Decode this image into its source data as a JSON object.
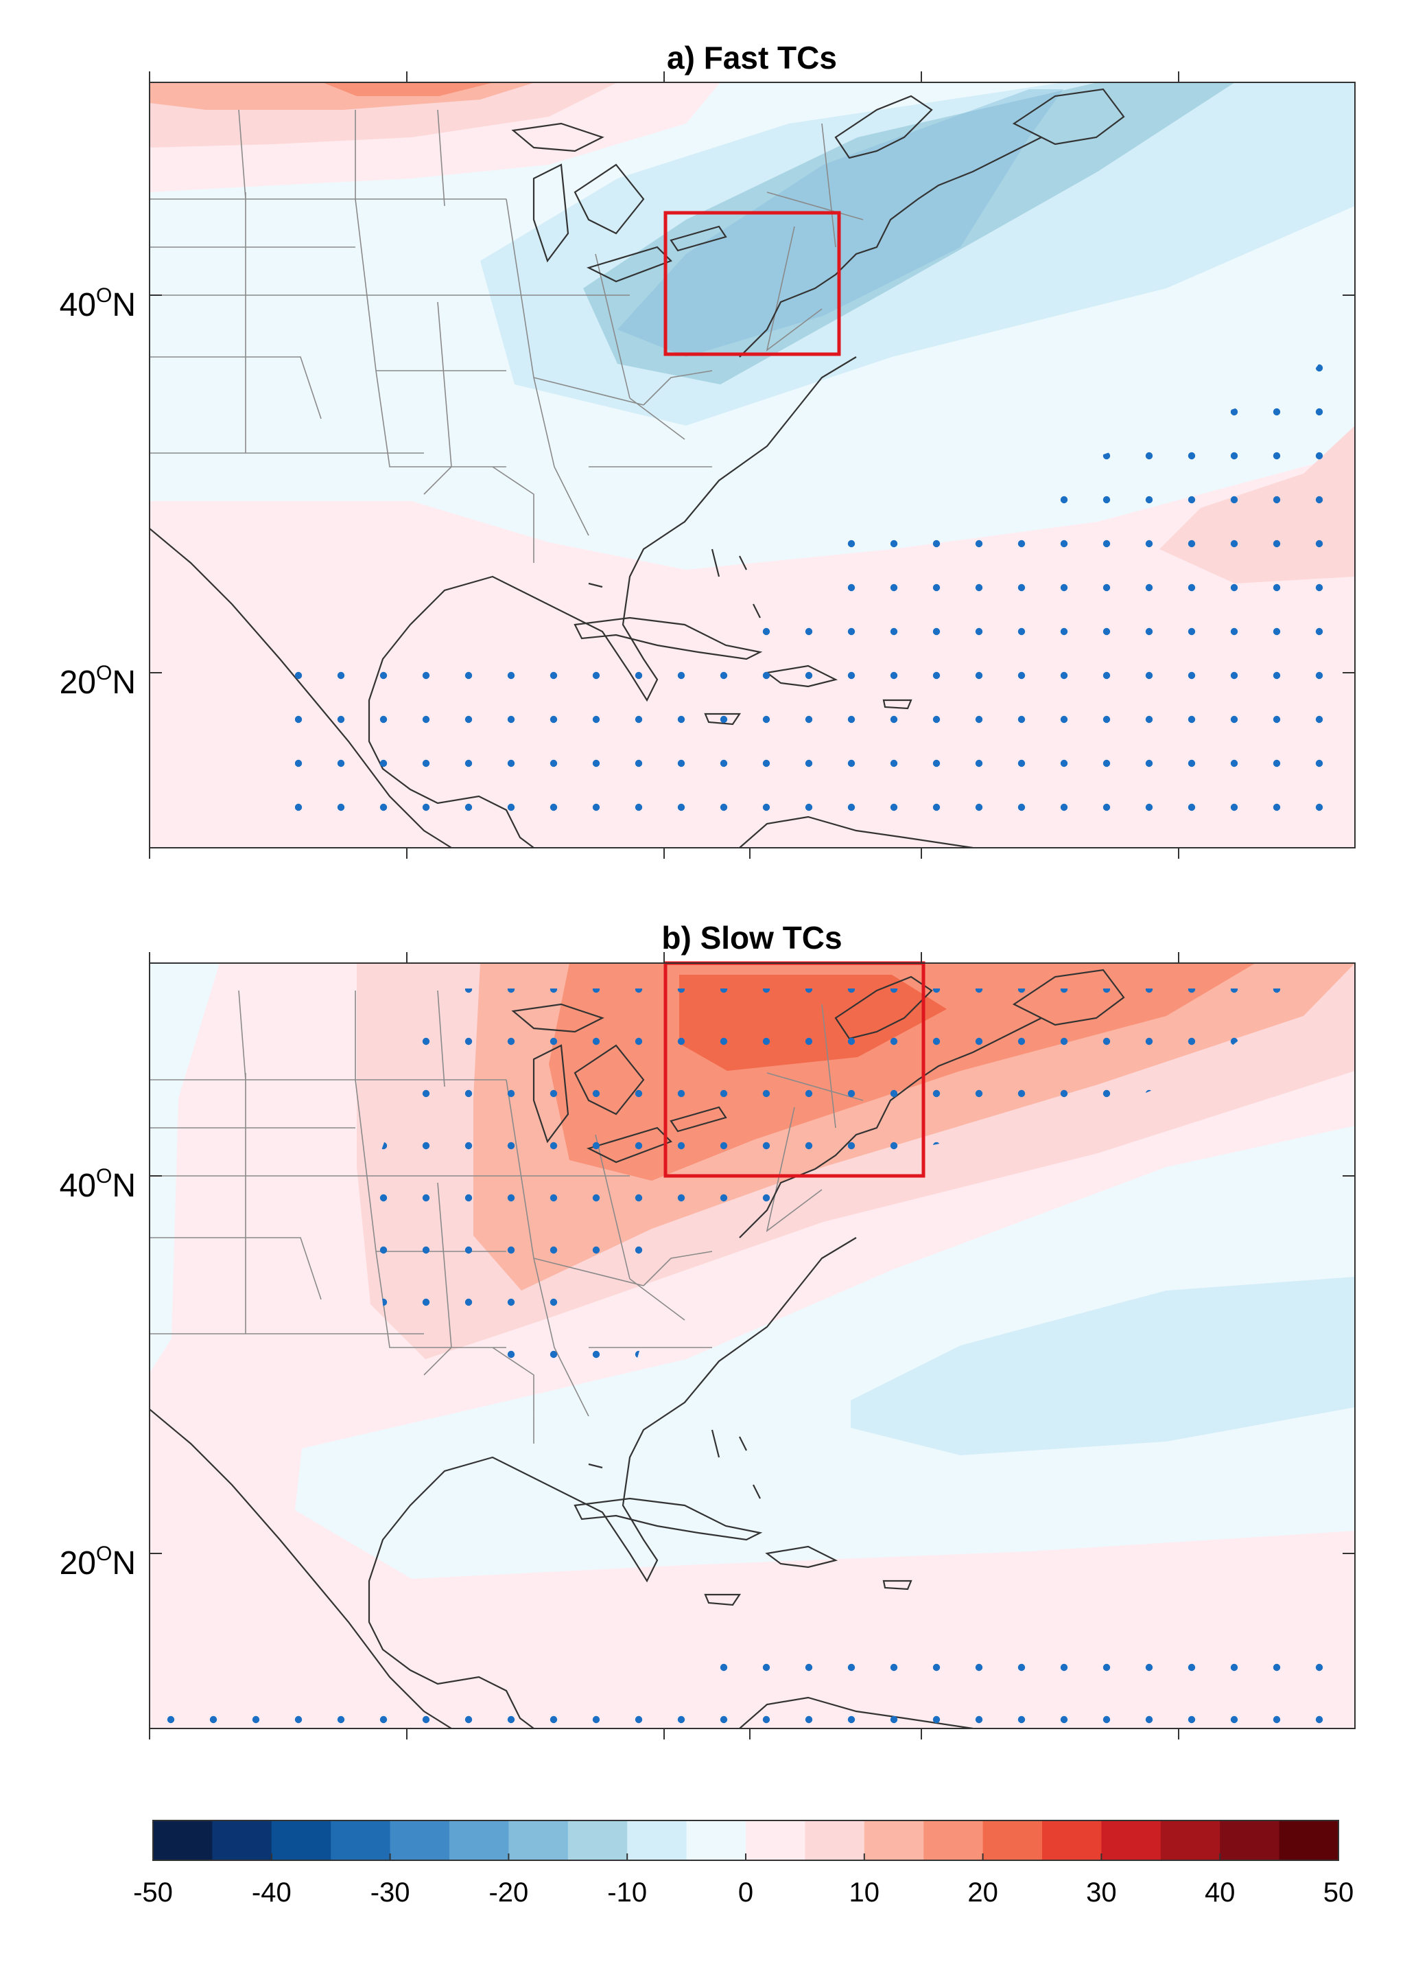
{
  "panels": [
    {
      "id": "a",
      "title": "a) Fast TCs",
      "yticks": [
        {
          "deg": "40",
          "hemi": "N"
        },
        {
          "deg": "20",
          "hemi": "N"
        }
      ]
    },
    {
      "id": "b",
      "title": "b) Slow TCs",
      "yticks": [
        {
          "deg": "40",
          "hemi": "N"
        },
        {
          "deg": "20",
          "hemi": "N"
        }
      ]
    }
  ],
  "colorbar": {
    "ticks": [
      "-50",
      "-40",
      "-30",
      "-20",
      "-10",
      "0",
      "10",
      "20",
      "30",
      "40",
      "50"
    ],
    "colors": [
      "#08204a",
      "#0b3572",
      "#0b4f95",
      "#1f6cb3",
      "#3f8ac6",
      "#5fa3d2",
      "#84bcdc",
      "#a9d4e4",
      "#d3eef8",
      "#eef9fd",
      "#ffecf0",
      "#fdd8d8",
      "#fbb6a6",
      "#f89379",
      "#f26a4c",
      "#e84030",
      "#cc1f24",
      "#a4141b",
      "#7e0c14",
      "#5c0308"
    ]
  },
  "chart_data": {
    "type": "map",
    "units_range": [
      -50,
      50
    ],
    "region": "Eastern North America and western North Atlantic"
  }
}
